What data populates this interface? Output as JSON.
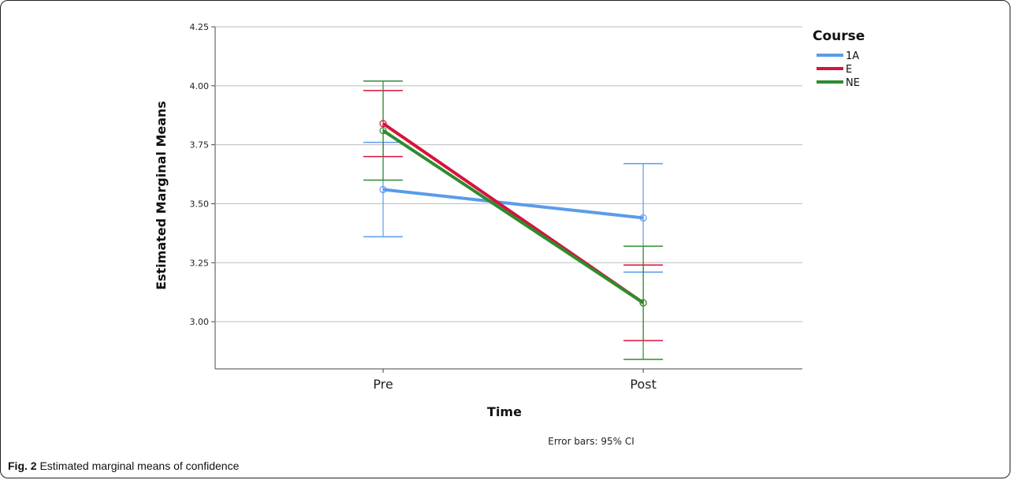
{
  "caption": {
    "label": "Fig. 2",
    "text": "Estimated marginal means of confidence"
  },
  "chart_data": {
    "type": "line",
    "title": "",
    "xlabel": "Time",
    "ylabel": "Estimated Marginal Means",
    "categories": [
      "Pre",
      "Post"
    ],
    "ylim": [
      2.8,
      4.25
    ],
    "yticks": [
      "3.00",
      "3.25",
      "3.50",
      "3.75",
      "4.00",
      "4.25"
    ],
    "grid": true,
    "legend": {
      "title": "Course",
      "placement": "top-right"
    },
    "note": "Error bars: 95% CI",
    "series": [
      {
        "name": "1A",
        "color": "#5b9bea",
        "values": [
          3.56,
          3.44
        ],
        "ci_low": [
          3.36,
          3.21
        ],
        "ci_high": [
          3.76,
          3.67
        ]
      },
      {
        "name": "E",
        "color": "#d6123e",
        "values": [
          3.84,
          3.08
        ],
        "ci_low": [
          3.7,
          2.92
        ],
        "ci_high": [
          3.98,
          3.24
        ]
      },
      {
        "name": "NE",
        "color": "#2e8b2e",
        "values": [
          3.81,
          3.08
        ],
        "ci_low": [
          3.6,
          2.84
        ],
        "ci_high": [
          4.02,
          3.32
        ]
      }
    ]
  }
}
